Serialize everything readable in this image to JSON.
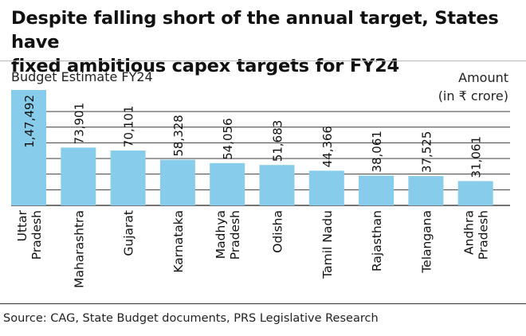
{
  "header": {
    "title_line1": "Despite falling short of the annual target, States have",
    "title_line2": "fixed ambitious capex targets for FY24",
    "subtitle": "Budget Estimate FY24",
    "unit_line1": "Amount",
    "unit_line2": "(in ₹ crore)"
  },
  "footer": {
    "source": "Source: CAG, State Budget documents, PRS Legislative Research"
  },
  "colors": {
    "bar": "#87ccea",
    "highlight_bar": "#87ccea",
    "grid": "#222222",
    "text": "#111111"
  },
  "chart_data": {
    "type": "bar",
    "orientation": "vertical",
    "categories": [
      "Uttar Pradesh",
      "Maharashtra",
      "Gujarat",
      "Karnataka",
      "Madhya Pradesh",
      "Odisha",
      "Tamil Nadu",
      "Rajasthan",
      "Telangana",
      "Andhra Pradesh"
    ],
    "category_label_lines": [
      [
        "Uttar",
        "Pradesh"
      ],
      [
        "Maharashtra"
      ],
      [
        "Gujarat"
      ],
      [
        "Karnataka"
      ],
      [
        "Madhya",
        "Pradesh"
      ],
      [
        "Odisha"
      ],
      [
        "Tamil Nadu"
      ],
      [
        "Rajasthan"
      ],
      [
        "Telangana"
      ],
      [
        "Andhra",
        "Pradesh"
      ]
    ],
    "values": [
      147492,
      73901,
      70101,
      58328,
      54056,
      51683,
      44366,
      38061,
      37525,
      31061
    ],
    "value_labels": [
      "1,47,492",
      "73,901",
      "70,101",
      "58,328",
      "54,056",
      "51,683",
      "44,366",
      "38,061",
      "37,525",
      "31,061"
    ],
    "ylim": [
      0,
      147492
    ],
    "gridlines": [
      20000,
      40000,
      60000,
      80000,
      100000,
      120000
    ]
  }
}
